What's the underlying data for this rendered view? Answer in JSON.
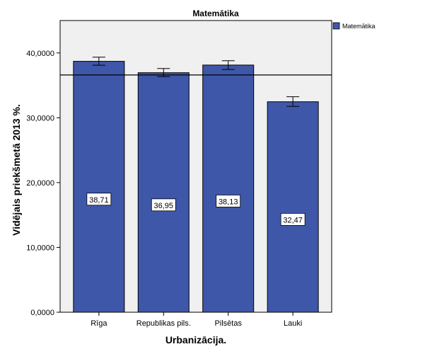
{
  "chart_data": {
    "type": "bar",
    "title": "Matemātika",
    "xlabel": "Urbanizācija.",
    "ylabel": "Vidējais priekšmetā 2013 %.",
    "categories": [
      "Rīga",
      "Republikas pils.",
      "Pilsētas",
      "Lauki"
    ],
    "series": [
      {
        "name": "Matemātika",
        "values": [
          38.71,
          36.95,
          38.13,
          32.47
        ],
        "value_labels": [
          "38,71",
          "36,95",
          "38,13",
          "32,47"
        ],
        "error_low": [
          38.1,
          36.35,
          37.45,
          31.75
        ],
        "error_high": [
          39.35,
          37.6,
          38.8,
          33.25
        ]
      }
    ],
    "reference_line": 36.6,
    "ylim": [
      0,
      45
    ],
    "yticks": [
      0,
      10,
      20,
      30,
      40
    ],
    "ytick_labels": [
      "0,0000",
      "10,0000",
      "20,0000",
      "30,0000",
      "40,0000"
    ],
    "legend_position": "top-right",
    "grid": false,
    "colors": {
      "bar": "#3F57A9",
      "bar_edge": "#000000",
      "plot_bg": "#F0F0F0",
      "axis": "#000000"
    }
  }
}
